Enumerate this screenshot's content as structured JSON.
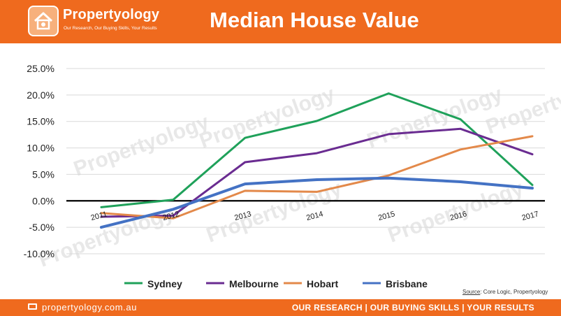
{
  "header": {
    "brand_name": "Propertyology",
    "brand_tagline": "Our Research, Our Buying Skills, Your Results",
    "title": "Median House Value"
  },
  "watermark_text": "Propertyology",
  "source": {
    "label": "Source",
    "text": ": Core Logic, Propertyology"
  },
  "footer": {
    "url": "propertyology.com.au",
    "tagline": "OUR RESEARCH | OUR BUYING SKILLS | YOUR RESULTS"
  },
  "colors": {
    "brand_orange": "#ef6a1e",
    "sydney": "#1fa15a",
    "melbourne": "#6a2c91",
    "hobart": "#e3894a",
    "brisbane": "#4472c4"
  },
  "chart_data": {
    "type": "line",
    "title": "Median House Value",
    "x": [
      "2011",
      "2012",
      "2013",
      "2014",
      "2015",
      "2016",
      "2017"
    ],
    "yticks": [
      "25.0%",
      "20.0%",
      "15.0%",
      "10.0%",
      "5.0%",
      "0.0%",
      "-5.0%",
      "-10.0%"
    ],
    "ylim": [
      -10,
      25
    ],
    "y_unit": "%",
    "grid": true,
    "legend_position": "bottom",
    "series": [
      {
        "name": "Sydney",
        "color": "#1fa15a",
        "values": [
          -1.2,
          0.2,
          11.9,
          15.1,
          20.3,
          15.4,
          3.0
        ]
      },
      {
        "name": "Melbourne",
        "color": "#6a2c91",
        "values": [
          -3.0,
          -2.8,
          7.3,
          9.0,
          12.6,
          13.6,
          8.8
        ]
      },
      {
        "name": "Hobart",
        "color": "#e3894a",
        "values": [
          -2.3,
          -3.3,
          1.9,
          1.7,
          4.8,
          9.7,
          12.2
        ]
      },
      {
        "name": "Brisbane",
        "color": "#4472c4",
        "values": [
          -5.0,
          -1.6,
          3.2,
          4.0,
          4.3,
          3.6,
          2.4
        ]
      }
    ]
  }
}
